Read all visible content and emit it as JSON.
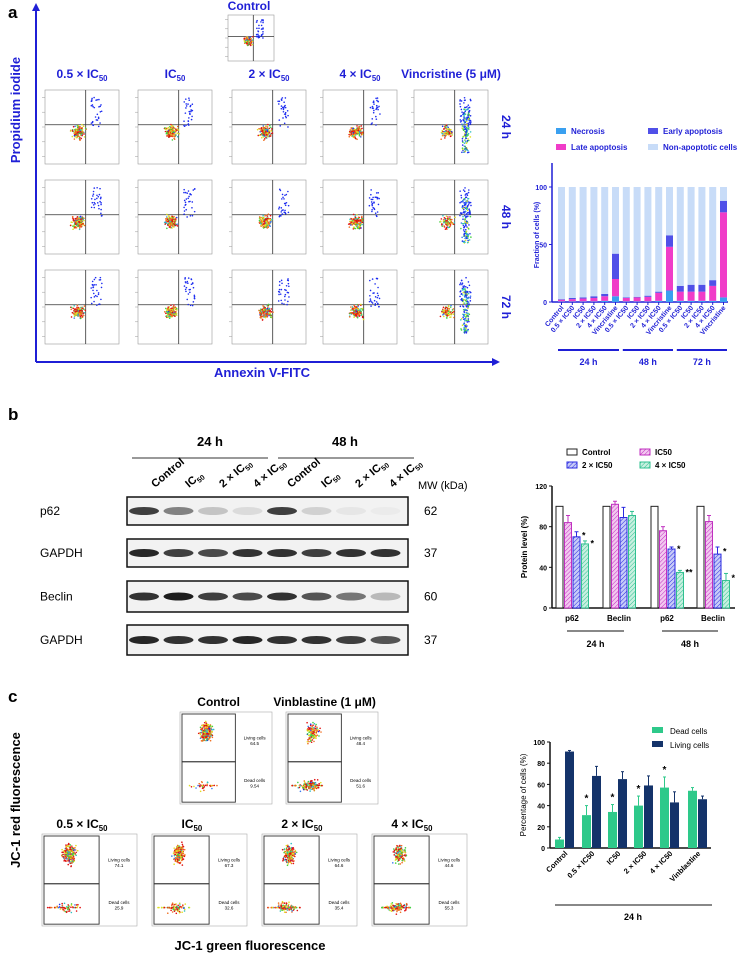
{
  "panel_a": {
    "letter": "a",
    "control_title": "Control",
    "y_axis_label": "Propidium iodide",
    "x_axis_label": "Annexin V-FITC",
    "columns": [
      {
        "text": "0.5 × IC",
        "sub": "50"
      },
      {
        "text": "IC",
        "sub": "50"
      },
      {
        "text": "2 × IC",
        "sub": "50"
      },
      {
        "text": "4 × IC",
        "sub": "50"
      },
      {
        "text": "Vincristine (5 μM)",
        "sub": ""
      }
    ],
    "rows": [
      "24 h",
      "48 h",
      "72 h"
    ]
  },
  "panel_b": {
    "letter": "b",
    "time_headers": [
      "24 h",
      "48 h"
    ],
    "lanes": [
      {
        "text": "Control",
        "sub": ""
      },
      {
        "text": "IC",
        "sub": "50"
      },
      {
        "text": "2 × IC",
        "sub": "50"
      },
      {
        "text": "4 × IC",
        "sub": "50"
      },
      {
        "text": "Control",
        "sub": ""
      },
      {
        "text": "IC",
        "sub": "50"
      },
      {
        "text": "2 × IC",
        "sub": "50"
      },
      {
        "text": "4 × IC",
        "sub": "50"
      }
    ],
    "mw_label": "MW (kDa)",
    "blots": [
      {
        "name": "p62",
        "mw": "62"
      },
      {
        "name": "GAPDH",
        "mw": "37"
      },
      {
        "name": "Beclin",
        "mw": "60"
      },
      {
        "name": "GAPDH",
        "mw": "37"
      }
    ]
  },
  "panel_c": {
    "letter": "c",
    "y_axis_label": "JC-1 red fluorescence",
    "x_axis_label": "JC-1 green fluorescence",
    "plots": [
      {
        "title": "Control",
        "sub": "",
        "living_label": "Living cells",
        "living": "64.5",
        "dead_label": "Dead cells",
        "dead": "9.54"
      },
      {
        "title": "Vinblastine (1 μM)",
        "sub": "",
        "living_label": "Living cells",
        "living": "48.4",
        "dead_label": "Dead cells",
        "dead": "51.6"
      },
      {
        "title": "0.5 × IC",
        "sub": "50",
        "living_label": "Living cells",
        "living": "74.1",
        "dead_label": "Dead cells",
        "dead": "25.9"
      },
      {
        "title": "IC",
        "sub": "50",
        "living_label": "Living cells",
        "living": "67.3",
        "dead_label": "Dead cells",
        "dead": "32.6"
      },
      {
        "title": "2 × IC",
        "sub": "50",
        "living_label": "Living cells",
        "living": "64.6",
        "dead_label": "Dead cells",
        "dead": "35.4"
      },
      {
        "title": "4 × IC",
        "sub": "50",
        "living_label": "Living cells",
        "living": "44.6",
        "dead_label": "Dead cells",
        "dead": "55.3"
      }
    ]
  },
  "chart_data": [
    {
      "type": "bar",
      "stacked": true,
      "ylabel": "Fraction of cells (%)",
      "ylim": [
        0,
        120
      ],
      "yticks": [
        "0",
        "50",
        "100"
      ],
      "categories": [
        "Control",
        "0.5 × IC50",
        "IC50",
        "2 × IC50",
        "4 × IC50",
        "Vincristine",
        "0.5 × IC50",
        "IC50",
        "2 × IC50",
        "4 × IC50",
        "Vincristine",
        "0.5 × IC50",
        "IC50",
        "2 × IC50",
        "4 × IC50",
        "Vincristine"
      ],
      "groups": [
        {
          "label": "24 h",
          "from": 0,
          "to": 5
        },
        {
          "label": "48 h",
          "from": 6,
          "to": 10
        },
        {
          "label": "72 h",
          "from": 11,
          "to": 15
        }
      ],
      "series": [
        {
          "name": "Necrosis",
          "color": "#3aa0f0",
          "values": [
            0.5,
            0.5,
            0.5,
            0.5,
            1,
            5,
            0.5,
            0.5,
            0.5,
            1,
            10,
            1,
            1,
            1,
            1,
            4
          ]
        },
        {
          "name": "Late apoptosis",
          "color": "#f03cc8",
          "values": [
            1.5,
            2,
            2.5,
            3,
            4,
            15,
            3,
            3.5,
            4,
            7,
            38,
            8,
            8,
            8,
            13,
            74
          ]
        },
        {
          "name": "Early apoptosis",
          "color": "#5050e8",
          "values": [
            0.5,
            1,
            1,
            1.5,
            2,
            22,
            0.5,
            0.5,
            1,
            1,
            10,
            5,
            6,
            6,
            5,
            10
          ]
        },
        {
          "name": "Non-apoptotic cells",
          "color": "#c8dcf8",
          "values": [
            97.5,
            96.5,
            96,
            95,
            93,
            58,
            96,
            95.5,
            94.5,
            91,
            42,
            86,
            85,
            85,
            81,
            12
          ]
        }
      ],
      "legend_order": [
        "Necrosis",
        "Early apoptosis",
        "Late apoptosis",
        "Non-apoptotic cells"
      ]
    },
    {
      "type": "bar",
      "ylabel": "Protein level (%)",
      "ylim": [
        0,
        120
      ],
      "yticks": [
        "0",
        "40",
        "80",
        "120"
      ],
      "categories": [
        "p62",
        "Beclin",
        "p62",
        "Beclin"
      ],
      "groups": [
        {
          "label": "24 h",
          "from": 0,
          "to": 1
        },
        {
          "label": "48 h",
          "from": 2,
          "to": 3
        }
      ],
      "series": [
        {
          "name": "Control",
          "color": "#222222",
          "fill": "#ffffff",
          "values": [
            100,
            100,
            100,
            100
          ],
          "err": [
            0,
            0,
            0,
            0
          ],
          "sig": [
            "",
            "",
            "",
            ""
          ]
        },
        {
          "name": "IC50",
          "color": "#c030c0",
          "values": [
            84,
            102,
            76,
            85
          ],
          "err": [
            7,
            3,
            4,
            6
          ],
          "sig": [
            "",
            "",
            "",
            ""
          ]
        },
        {
          "name": "2 × IC50",
          "color": "#2a2ae0",
          "values": [
            70,
            89,
            58,
            53
          ],
          "err": [
            5,
            10,
            2,
            7
          ],
          "sig": [
            "*",
            "",
            "*",
            "*"
          ]
        },
        {
          "name": "4 × IC50",
          "color": "#30c090",
          "values": [
            63,
            91,
            35,
            27
          ],
          "err": [
            3,
            4,
            2,
            7
          ],
          "sig": [
            "*",
            "",
            "**",
            "*"
          ]
        }
      ]
    },
    {
      "type": "bar",
      "ylabel": "Percentage of cells (%)",
      "ylim": [
        0,
        100
      ],
      "yticks": [
        "0",
        "20",
        "40",
        "60",
        "80",
        "100"
      ],
      "categories": [
        "Control",
        "0.5 × IC50",
        "IC50",
        "2 × IC50",
        "4 × IC50",
        "Vinblastine"
      ],
      "groups": [
        {
          "label": "24 h",
          "from": 0,
          "to": 5
        }
      ],
      "series": [
        {
          "name": "Dead cells",
          "color": "#2ec98a",
          "values": [
            8,
            31,
            34,
            40,
            57,
            54
          ],
          "err": [
            2,
            9,
            7,
            9,
            10,
            3
          ],
          "sig": [
            "",
            "*",
            "*",
            "*",
            "*",
            ""
          ]
        },
        {
          "name": "Living cells",
          "color": "#14336a",
          "values": [
            91,
            68,
            65,
            59,
            43,
            46
          ],
          "err": [
            1,
            9,
            7,
            9,
            10,
            3
          ],
          "sig": [
            "",
            "",
            "",
            "",
            "",
            ""
          ]
        }
      ]
    }
  ]
}
